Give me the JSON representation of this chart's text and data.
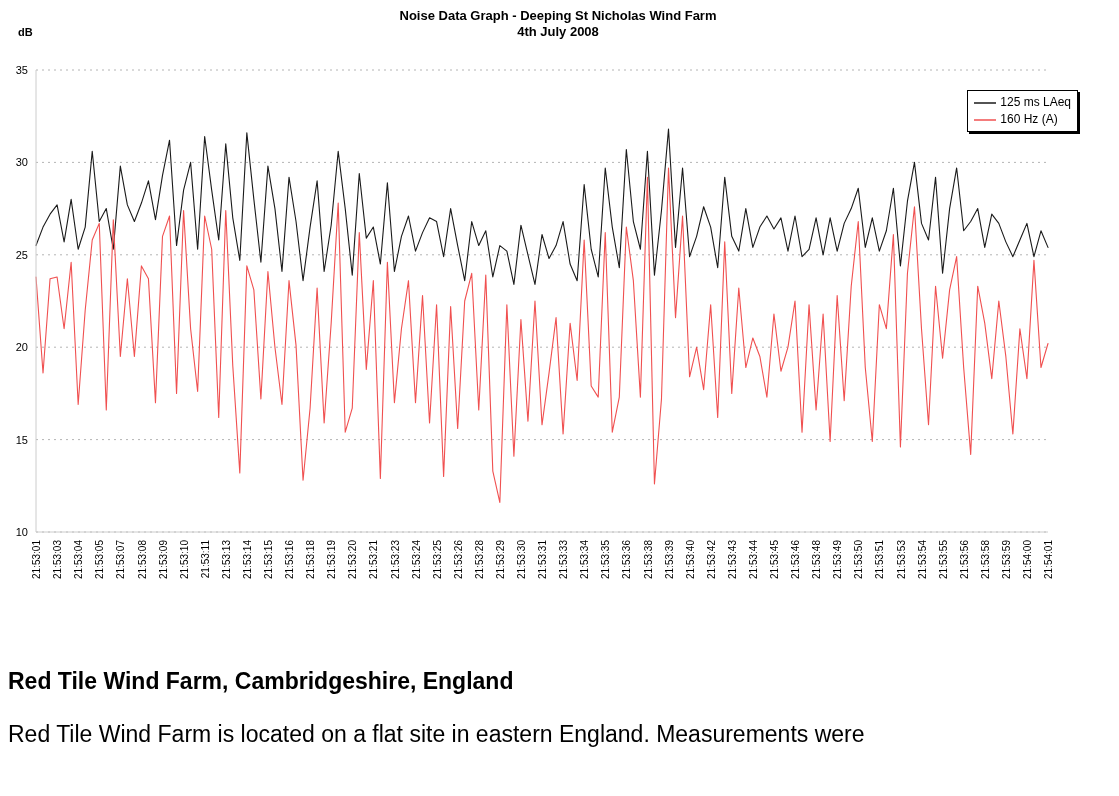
{
  "chart_data": {
    "type": "line",
    "title": "Noise Data Graph - Deeping St Nicholas Wind Farm",
    "subtitle": "4th July 2008",
    "ylabel": "dB",
    "categories": [
      "21:53:01",
      null,
      null,
      "21:53:03",
      null,
      null,
      "21:53:04",
      null,
      null,
      "21:53:05",
      null,
      null,
      "21:53:07",
      null,
      null,
      "21:53:08",
      null,
      null,
      "21:53:09",
      null,
      null,
      "21:53:10",
      null,
      null,
      "21:53:11",
      null,
      null,
      "21:53:13",
      null,
      null,
      "21:53:14",
      null,
      null,
      "21:53:15",
      null,
      null,
      "21:53:16",
      null,
      null,
      "21:53:18",
      null,
      null,
      "21:53:19",
      null,
      null,
      "21:53:20",
      null,
      null,
      "21:53:21",
      null,
      null,
      "21:53:23",
      null,
      null,
      "21:53:24",
      null,
      null,
      "21:53:25",
      null,
      null,
      "21:53:26",
      null,
      null,
      "21:53:28",
      null,
      null,
      "21:53:29",
      null,
      null,
      "21:53:30",
      null,
      null,
      "21:53:31",
      null,
      null,
      "21:53:33",
      null,
      null,
      "21:53:34",
      null,
      null,
      "21:53:35",
      null,
      null,
      "21:53:36",
      null,
      null,
      "21:53:38",
      null,
      null,
      "21:53:39",
      null,
      null,
      "21:53:40",
      null,
      null,
      "21:53:42",
      null,
      null,
      "21:53:43",
      null,
      null,
      "21:53:44",
      null,
      null,
      "21:53:45",
      null,
      null,
      "21:53:46",
      null,
      null,
      "21:53:48",
      null,
      null,
      "21:53:49",
      null,
      null,
      "21:53:50",
      null,
      null,
      "21:53:51",
      null,
      null,
      "21:53:53",
      null,
      null,
      "21:53:54",
      null,
      null,
      "21:53:55",
      null,
      null,
      "21:53:56",
      null,
      null,
      "21:53:58",
      null,
      null,
      "21:53:59",
      null,
      null,
      "21:54:00",
      null,
      null,
      "21:54:01"
    ],
    "series": [
      {
        "name": "125 ms LAeq",
        "color": "#1a1a1a",
        "values": [
          25.5,
          26.5,
          27.2,
          27.7,
          25.7,
          28,
          25.3,
          26.5,
          30.6,
          26.8,
          27.5,
          25.3,
          29.8,
          27.7,
          26.8,
          27.8,
          29,
          26.9,
          29.3,
          31.2,
          25.5,
          28.5,
          30,
          25.3,
          31.4,
          28.5,
          25.8,
          31,
          27,
          24.7,
          31.6,
          28,
          24.6,
          29.8,
          27.5,
          24.1,
          29.2,
          26.8,
          23.6,
          26.5,
          29,
          24.1,
          26.6,
          30.6,
          27.5,
          23.9,
          29.4,
          25.9,
          26.5,
          24.5,
          28.9,
          24.1,
          26,
          27.1,
          25.2,
          26.2,
          27,
          26.8,
          24.9,
          27.5,
          25.5,
          23.6,
          26.8,
          25.5,
          26.3,
          23.8,
          25.5,
          25.2,
          23.4,
          26.6,
          25,
          23.4,
          26.1,
          24.8,
          25.5,
          26.8,
          24.5,
          23.6,
          28.8,
          25.3,
          23.8,
          29.7,
          26.5,
          24.3,
          30.7,
          26.8,
          25.3,
          30.6,
          23.9,
          27.4,
          31.8,
          25.4,
          29.7,
          24.9,
          26,
          27.6,
          26.5,
          24.3,
          29.2,
          26,
          25.2,
          27.5,
          25.4,
          26.5,
          27.1,
          26.4,
          27,
          25.2,
          27.1,
          24.9,
          25.3,
          27,
          25,
          27,
          25.2,
          26.7,
          27.5,
          28.6,
          25.4,
          27,
          25.2,
          26.3,
          28.6,
          24.4,
          27.9,
          30,
          26.7,
          25.8,
          29.2,
          24,
          27.5,
          29.7,
          26.3,
          26.8,
          27.5,
          25.4,
          27.2,
          26.7,
          25.7,
          24.9,
          25.8,
          26.7,
          24.9,
          26.3,
          25.4
        ]
      },
      {
        "name": "160 Hz (A)",
        "color": "#f05050",
        "values": [
          23.8,
          18.6,
          23.7,
          23.8,
          21,
          24.6,
          16.9,
          22,
          25.8,
          26.7,
          16.6,
          26.9,
          19.5,
          23.7,
          19.5,
          24.4,
          23.7,
          17,
          26,
          27.1,
          17.5,
          27.4,
          21,
          17.6,
          27.1,
          25.3,
          16.2,
          27.4,
          19,
          13.2,
          24.4,
          23.1,
          17.2,
          24.1,
          20,
          16.9,
          23.6,
          20.1,
          12.8,
          16.7,
          23.2,
          15.9,
          21.3,
          27.8,
          15.4,
          16.7,
          26.2,
          18.8,
          23.6,
          12.9,
          24.6,
          17,
          21,
          23.6,
          17,
          22.8,
          15.9,
          22.3,
          13,
          22.2,
          15.6,
          22.5,
          24,
          16.6,
          23.9,
          13.3,
          11.6,
          22.3,
          14.1,
          21.5,
          16,
          22.5,
          15.8,
          18.6,
          21.6,
          15.3,
          21.3,
          18.2,
          25.8,
          17.9,
          17.3,
          26.2,
          15.4,
          17.3,
          26.5,
          23.6,
          17.3,
          29.2,
          12.6,
          17.2,
          29.7,
          21.6,
          27.1,
          18.4,
          20,
          17.7,
          22.3,
          16.2,
          25.7,
          17.5,
          23.2,
          18.9,
          20.5,
          19.5,
          17.3,
          21.8,
          18.7,
          20,
          22.5,
          15.4,
          22.3,
          16.6,
          21.8,
          14.9,
          22.8,
          17.1,
          23.3,
          26.8,
          18.9,
          14.9,
          22.3,
          21,
          26.1,
          14.6,
          24,
          27.6,
          21,
          15.8,
          23.3,
          19.4,
          23.1,
          24.9,
          18.9,
          14.2,
          23.3,
          21.3,
          18.3,
          22.5,
          19.5,
          15.3,
          21,
          18.3,
          24.7,
          18.9,
          20.2
        ]
      }
    ],
    "ylim": [
      10,
      35
    ],
    "yticks": [
      10,
      15,
      20,
      25,
      30,
      35
    ],
    "grid": "y",
    "legend": "top right",
    "marker": "none",
    "line_style": "solid",
    "annotations": [
      "Red Tile Wind Farm, Cambridgeshire, England",
      "Red Tile Wind Farm is located on a flat site in eastern England. Measurements were"
    ]
  }
}
